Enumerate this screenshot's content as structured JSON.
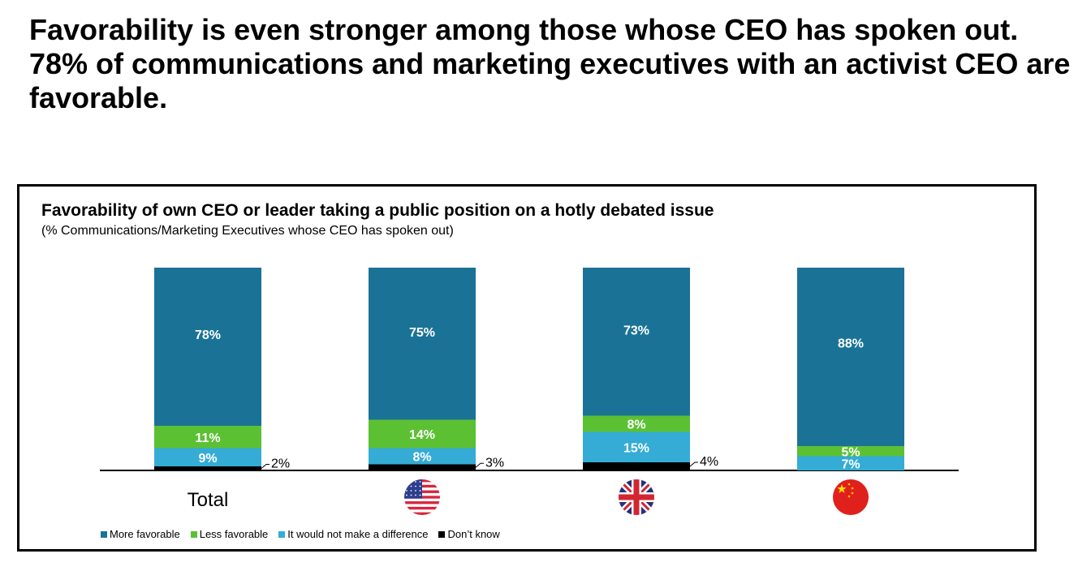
{
  "headline": "Favorability is even stronger among those whose CEO has spoken out. 78% of communications and marketing executives with an activist CEO are favorable.",
  "colors": {
    "more_favorable": "#1a7396",
    "less_favorable": "#5cc033",
    "no_difference": "#34acd6",
    "dont_know": "#000000"
  },
  "chart_data": {
    "type": "bar",
    "stacked": true,
    "title": "Favorability of own CEO or leader taking a public position on a hotly debated issue",
    "subtitle": "(% Communications/Marketing Executives whose CEO has spoken out)",
    "categories": [
      "Total",
      "United States",
      "United Kingdom",
      "China"
    ],
    "category_icons": [
      "",
      "us-flag-icon",
      "uk-flag-icon",
      "china-flag-icon"
    ],
    "category_text": [
      "Total",
      "",
      "",
      ""
    ],
    "series": [
      {
        "name": "Don't know",
        "values": [
          2,
          3,
          4,
          0
        ],
        "labels": [
          "2%",
          "3%",
          "4%",
          ""
        ]
      },
      {
        "name": "It would not make a difference",
        "values": [
          9,
          8,
          15,
          7
        ],
        "labels": [
          "9%",
          "8%",
          "15%",
          "7%"
        ]
      },
      {
        "name": "Less favorable",
        "values": [
          11,
          14,
          8,
          5
        ],
        "labels": [
          "11%",
          "14%",
          "8%",
          "5%"
        ]
      },
      {
        "name": "More favorable",
        "values": [
          78,
          75,
          73,
          88
        ],
        "labels": [
          "78%",
          "75%",
          "73%",
          "88%"
        ]
      }
    ],
    "ylim": [
      0,
      100
    ],
    "grid": false
  },
  "legend": [
    {
      "label": "More favorable",
      "color": "#1a7396"
    },
    {
      "label": "Less favorable",
      "color": "#5cc033"
    },
    {
      "label": "It would not make a difference",
      "color": "#34acd6"
    },
    {
      "label": "Don’t know",
      "color": "#000000"
    }
  ]
}
